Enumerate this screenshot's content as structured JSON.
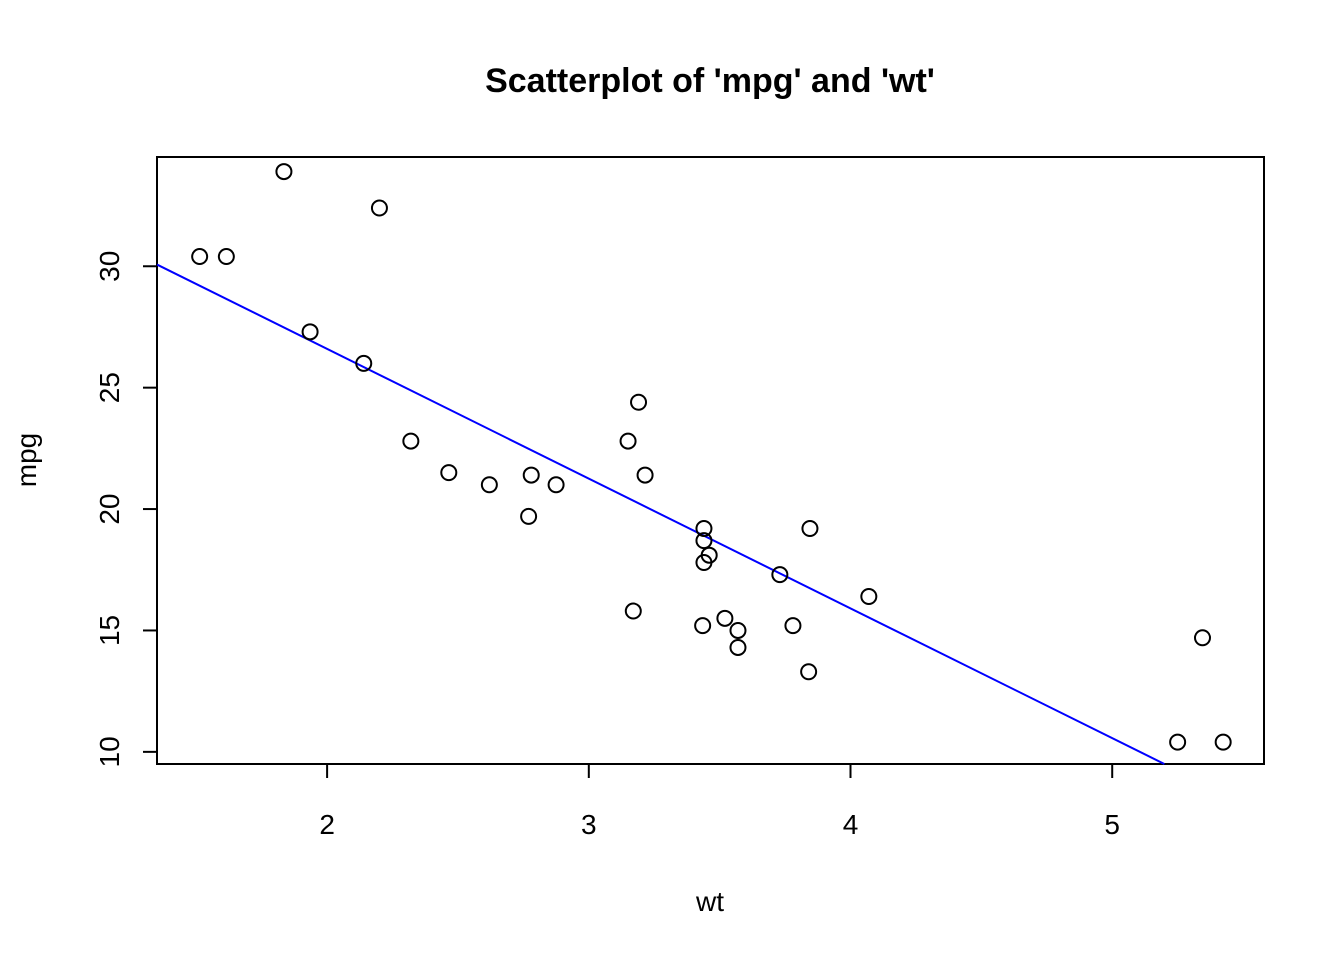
{
  "chart_data": {
    "type": "scatter",
    "title": "Scatterplot of 'mpg' and 'wt'",
    "xlabel": "wt",
    "ylabel": "mpg",
    "xlim": [
      1.35,
      5.58
    ],
    "ylim": [
      9.5,
      34.5
    ],
    "x_ticks": [
      "2",
      "3",
      "4",
      "5"
    ],
    "y_ticks": [
      "10",
      "15",
      "20",
      "25",
      "30"
    ],
    "grid": false,
    "point_color": "#000000",
    "line_color": "#0000ff",
    "points": [
      {
        "x": 1.513,
        "y": 30.4
      },
      {
        "x": 1.615,
        "y": 30.4
      },
      {
        "x": 1.835,
        "y": 33.9
      },
      {
        "x": 1.935,
        "y": 27.3
      },
      {
        "x": 2.14,
        "y": 26.0
      },
      {
        "x": 2.2,
        "y": 32.4
      },
      {
        "x": 2.32,
        "y": 22.8
      },
      {
        "x": 2.465,
        "y": 21.5
      },
      {
        "x": 2.62,
        "y": 21.0
      },
      {
        "x": 2.77,
        "y": 19.7
      },
      {
        "x": 2.78,
        "y": 21.4
      },
      {
        "x": 2.875,
        "y": 21.0
      },
      {
        "x": 3.15,
        "y": 22.8
      },
      {
        "x": 3.17,
        "y": 15.8
      },
      {
        "x": 3.19,
        "y": 24.4
      },
      {
        "x": 3.215,
        "y": 21.4
      },
      {
        "x": 3.435,
        "y": 15.2
      },
      {
        "x": 3.44,
        "y": 18.7
      },
      {
        "x": 3.44,
        "y": 19.2
      },
      {
        "x": 3.44,
        "y": 17.8
      },
      {
        "x": 3.46,
        "y": 18.1
      },
      {
        "x": 3.52,
        "y": 15.5
      },
      {
        "x": 3.57,
        "y": 15.0
      },
      {
        "x": 3.57,
        "y": 14.3
      },
      {
        "x": 3.73,
        "y": 17.3
      },
      {
        "x": 3.78,
        "y": 15.2
      },
      {
        "x": 3.84,
        "y": 13.3
      },
      {
        "x": 3.845,
        "y": 19.2
      },
      {
        "x": 4.07,
        "y": 16.4
      },
      {
        "x": 5.25,
        "y": 10.4
      },
      {
        "x": 5.345,
        "y": 14.7
      },
      {
        "x": 5.424,
        "y": 10.4
      }
    ],
    "regression_line": {
      "intercept": 37.285,
      "slope": -5.344
    }
  }
}
